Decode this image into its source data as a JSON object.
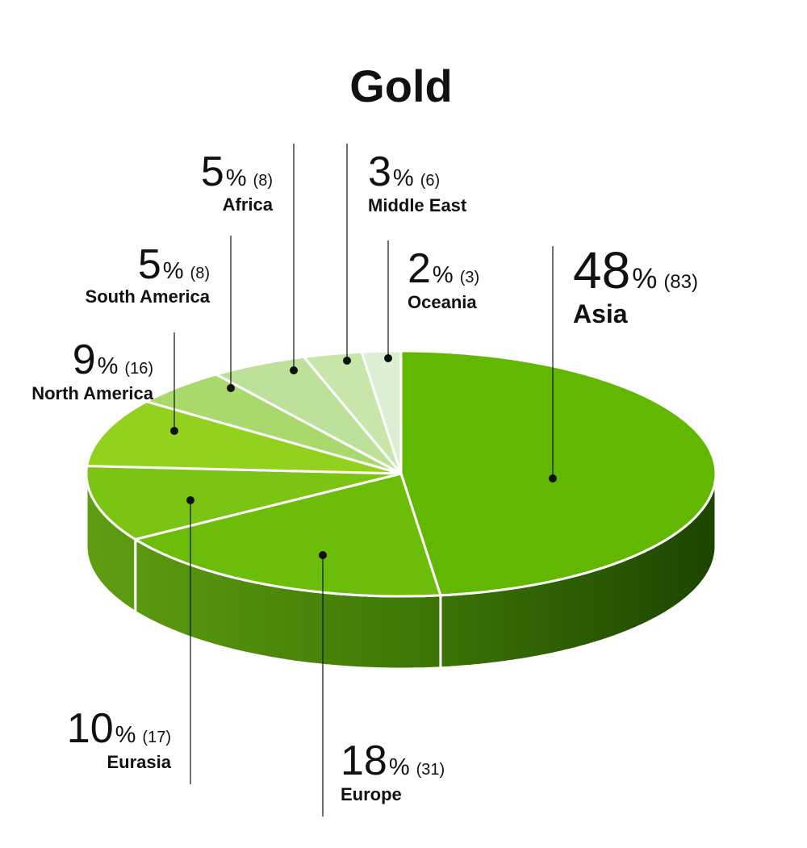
{
  "chart_data": {
    "type": "pie3d",
    "title": "Gold",
    "categories": [
      "Asia",
      "Europe",
      "Eurasia",
      "North America",
      "South America",
      "Africa",
      "Middle East",
      "Oceania"
    ],
    "values": [
      48,
      18,
      10,
      9,
      5,
      5,
      3,
      2
    ],
    "unit": "%",
    "count_labels": [
      "(83)",
      "(31)",
      "(17)",
      "(16)",
      "(8)",
      "(8)",
      "(6)",
      "(3)"
    ],
    "colors": [
      "#62b800",
      "#6cbc0a",
      "#7cc414",
      "#92d11e",
      "#a9d96c",
      "#bde09a",
      "#c8e6aa",
      "#dcefd2"
    ]
  }
}
